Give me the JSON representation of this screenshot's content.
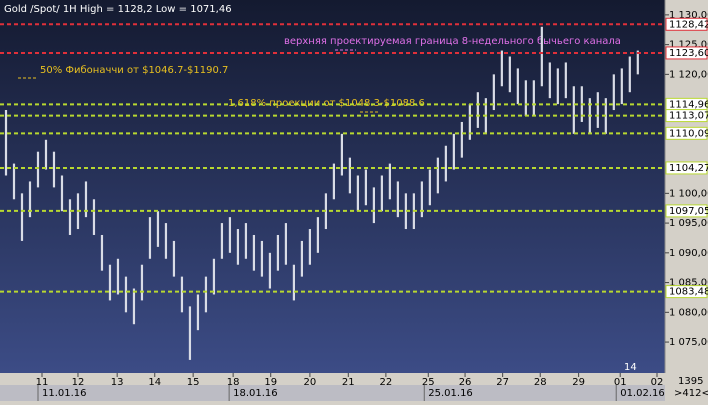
{
  "chart_data": {
    "type": "hlbar",
    "title": "Gold /Spot/  1H High = 1128,2 Low = 1071,46",
    "annotations": [
      "верхняя проектируемая граница 8-недельного бычьего канала",
      "50% Фибоначчи от $1046.7-$1190.7",
      "1,618% проекции от $1048.3-$1088.6"
    ],
    "color": "#d9dce6",
    "highs": [
      1114,
      1105,
      1100,
      1102,
      1107,
      1109,
      1107,
      1103,
      1099,
      1100,
      1102,
      1099,
      1093,
      1088,
      1089,
      1086,
      1084,
      1088,
      1096,
      1097,
      1095,
      1092,
      1086,
      1081,
      1083,
      1086,
      1089,
      1095,
      1096,
      1094,
      1095,
      1093,
      1092,
      1090,
      1093,
      1095,
      1088,
      1092,
      1094,
      1096,
      1100,
      1105,
      1110,
      1106,
      1103,
      1104,
      1101,
      1103,
      1105,
      1102,
      1100,
      1100,
      1102,
      1104,
      1106,
      1108,
      1110,
      1112,
      1115,
      1117,
      1116,
      1120,
      1124,
      1123,
      1121,
      1119,
      1119,
      1128,
      1122,
      1121,
      1122,
      1118,
      1118,
      1116,
      1117,
      1116,
      1120,
      1121,
      1123,
      1124
    ],
    "lows": [
      1103,
      1099,
      1092,
      1096,
      1101,
      1104,
      1101,
      1097,
      1093,
      1094,
      1096,
      1093,
      1087,
      1082,
      1083,
      1080,
      1078,
      1082,
      1089,
      1091,
      1089,
      1086,
      1080,
      1072,
      1077,
      1080,
      1083,
      1089,
      1090,
      1088,
      1089,
      1087,
      1086,
      1084,
      1087,
      1088,
      1082,
      1086,
      1088,
      1090,
      1094,
      1099,
      1103,
      1100,
      1097,
      1098,
      1095,
      1097,
      1099,
      1096,
      1094,
      1094,
      1096,
      1098,
      1100,
      1102,
      1104,
      1106,
      1109,
      1111,
      1110,
      1114,
      1118,
      1117,
      1115,
      1113,
      1113,
      1118,
      1116,
      1115,
      1116,
      1110,
      1112,
      1110,
      1111,
      1110,
      1114,
      1115,
      1117,
      1120
    ],
    "xlim": [
      -0.75,
      82.4
    ],
    "xticks": [
      {
        "value": 4.5,
        "label": "11"
      },
      {
        "value": 9,
        "label": "12"
      },
      {
        "value": 13.9,
        "label": "13"
      },
      {
        "value": 18.6,
        "label": "14"
      },
      {
        "value": 23.4,
        "label": "15"
      },
      {
        "value": 28.4,
        "label": "18"
      },
      {
        "value": 33.1,
        "label": "19"
      },
      {
        "value": 38,
        "label": "20"
      },
      {
        "value": 42.8,
        "label": "21"
      },
      {
        "value": 47.5,
        "label": "22"
      },
      {
        "value": 52.8,
        "label": "25"
      },
      {
        "value": 57.4,
        "label": "26"
      },
      {
        "value": 62.1,
        "label": "27"
      },
      {
        "value": 66.8,
        "label": "28"
      },
      {
        "value": 71.6,
        "label": "29"
      },
      {
        "value": 76.8,
        "label": "01"
      },
      {
        "value": 81.4,
        "label": "02"
      }
    ],
    "date_ticks": [
      {
        "value": 4.5,
        "label": "11.01.16"
      },
      {
        "value": 28.4,
        "label": "18.01.16"
      },
      {
        "value": 52.8,
        "label": "25.01.16"
      },
      {
        "value": 76.8,
        "label": "01.02.16"
      }
    ],
    "ylim": [
      1069.8,
      1132.5
    ],
    "yticks": [
      {
        "value": 1075,
        "label": "1 075,00"
      },
      {
        "value": 1080,
        "label": "1 080,00"
      },
      {
        "value": 1085,
        "label": "1 085,00"
      },
      {
        "value": 1090,
        "label": "1 090,00"
      },
      {
        "value": 1095,
        "label": "1 095,00"
      },
      {
        "value": 1100,
        "label": "1 100,00"
      },
      {
        "value": 1120,
        "label": "1 120,00"
      },
      {
        "value": 1125,
        "label": "1 125,00"
      },
      {
        "value": 1130,
        "label": "1 130,00"
      }
    ],
    "levels": {
      "values": [
        1128.42,
        1123.6,
        1114.96,
        1113.07,
        1110.09,
        1104.27,
        1097.05,
        1083.48
      ],
      "value_labels": [
        "1128,42",
        "1123,60",
        "1114,96",
        "1113,07",
        "1110,09",
        "1104,27",
        "1097,05",
        "1083,48"
      ],
      "colors": [
        "#e0303a",
        "#e0303a",
        "#b8d830",
        "#b8d830",
        "#b8d830",
        "#b8d830",
        "#b8d830",
        "#b8d830"
      ]
    },
    "footer": [
      "14",
      "1395",
      ">412<"
    ]
  }
}
